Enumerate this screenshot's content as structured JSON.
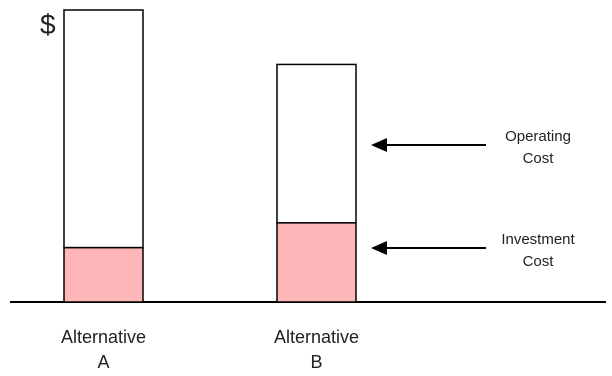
{
  "chart_data": {
    "type": "bar",
    "stacked": true,
    "ylabel": "$",
    "xlabel": "",
    "grid": false,
    "legend": "annotations-right",
    "categories": [
      {
        "line1": "Alternative",
        "line2": "A"
      },
      {
        "line1": "Alternative",
        "line2": "B"
      }
    ],
    "series": [
      {
        "name": "Investment Cost",
        "color": "#ffb6b9",
        "values": [
          55,
          80
        ]
      },
      {
        "name": "Operating Cost",
        "color": "#ffffff",
        "values": [
          240,
          160
        ]
      }
    ],
    "ylim": [
      0,
      295
    ],
    "annotations": [
      {
        "label_lines": [
          "Operating",
          "Cost"
        ],
        "series": "Operating Cost"
      },
      {
        "label_lines": [
          "Investment",
          "Cost"
        ],
        "series": "Investment Cost"
      }
    ]
  }
}
